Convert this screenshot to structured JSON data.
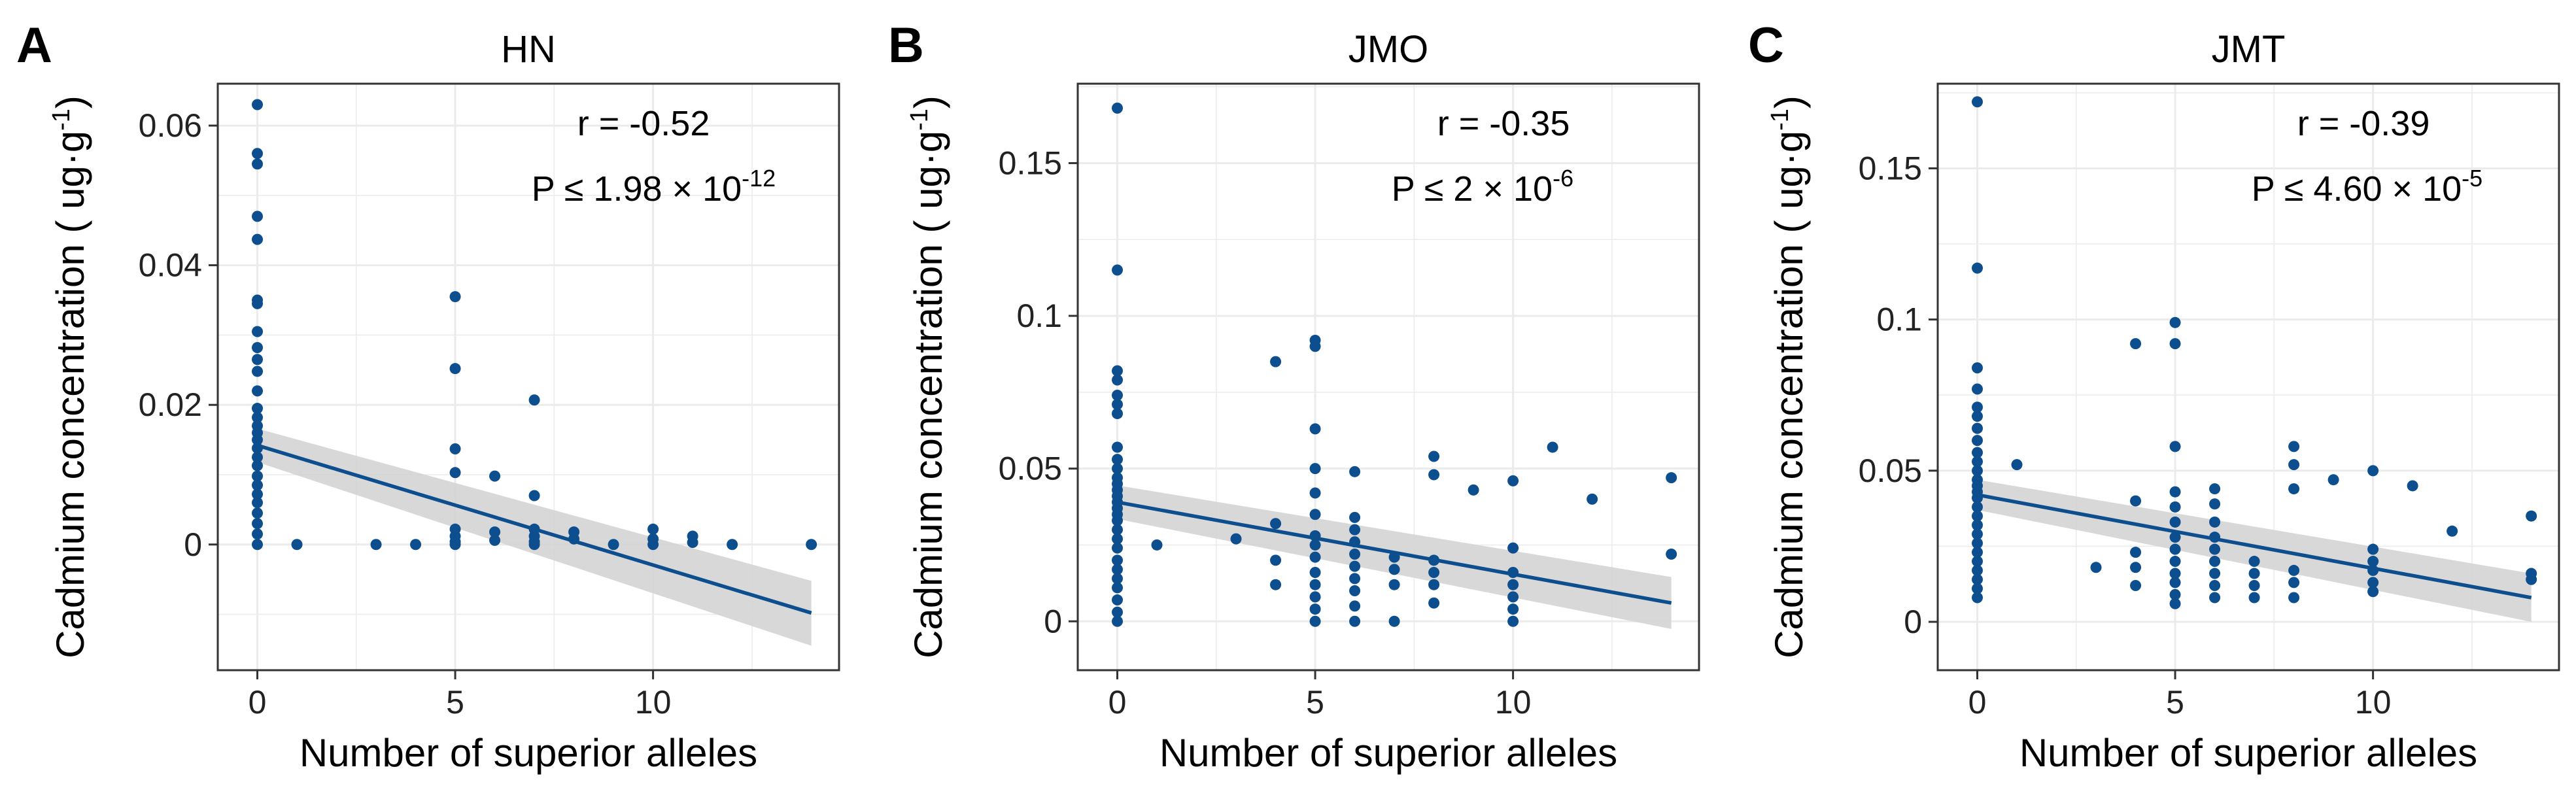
{
  "figure": {
    "xlabel": "Number of superior alleles",
    "ylabel_main": "Cadmium concentration ( ug·g",
    "ylabel_sup": "-1",
    "ylabel_close": ")"
  },
  "colors": {
    "points": "#0D4E8E",
    "fit_line": "#0D4E8E",
    "ci_band": "#D4D4D4",
    "grid": "#EBEBEB",
    "frame": "#333333",
    "text": "#000000"
  },
  "chart_data": [
    {
      "type": "scatter",
      "panel_label": "A",
      "title": "HN",
      "xlabel": "Number of superior alleles",
      "ylabel": "Cadmium concentration ( ug·g-1)",
      "xlim": [
        -1,
        14.7
      ],
      "ylim": [
        -0.018,
        0.066
      ],
      "xticks": [
        0,
        5,
        10
      ],
      "xtick_labels": [
        "0",
        "5",
        "10"
      ],
      "yticks": [
        0,
        0.02,
        0.04,
        0.06
      ],
      "ytick_labels": [
        "0",
        "0.02",
        "0.04",
        "0.06"
      ],
      "annotation": {
        "r": "r = -0.52",
        "p_base": "P ≤ 1.98 × 10",
        "p_exp": "-12"
      },
      "fit": {
        "x": [
          0,
          14
        ],
        "y": [
          0.0142,
          -0.0098
        ],
        "ci_low": [
          0.0118,
          -0.0145
        ],
        "ci_high": [
          0.0166,
          -0.0052
        ]
      },
      "points": [
        [
          0,
          0.063
        ],
        [
          0,
          0.056
        ],
        [
          0,
          0.0545
        ],
        [
          0,
          0.047
        ],
        [
          0,
          0.0437
        ],
        [
          0,
          0.035
        ],
        [
          0,
          0.0345
        ],
        [
          0,
          0.0305
        ],
        [
          0,
          0.0282
        ],
        [
          0,
          0.0265
        ],
        [
          0,
          0.0248
        ],
        [
          0,
          0.022
        ],
        [
          0,
          0.0195
        ],
        [
          0,
          0.0182
        ],
        [
          0,
          0.017
        ],
        [
          0,
          0.016
        ],
        [
          0,
          0.015
        ],
        [
          0,
          0.0138
        ],
        [
          0,
          0.0125
        ],
        [
          0,
          0.0113
        ],
        [
          0,
          0.0098
        ],
        [
          0,
          0.0085
        ],
        [
          0,
          0.0072
        ],
        [
          0,
          0.006
        ],
        [
          0,
          0.0045
        ],
        [
          0,
          0.003
        ],
        [
          0,
          0.0015
        ],
        [
          0,
          0.0
        ],
        [
          1,
          0.0
        ],
        [
          3,
          0.0
        ],
        [
          4,
          0.0
        ],
        [
          5,
          0.0355
        ],
        [
          5,
          0.0252
        ],
        [
          5,
          0.0137
        ],
        [
          5,
          0.0103
        ],
        [
          5,
          0.0022
        ],
        [
          5,
          0.0012
        ],
        [
          5,
          0.0004
        ],
        [
          5,
          0.0
        ],
        [
          6,
          0.0098
        ],
        [
          6,
          0.0018
        ],
        [
          6,
          0.0006
        ],
        [
          7,
          0.0207
        ],
        [
          7,
          0.007
        ],
        [
          7,
          0.0022
        ],
        [
          7,
          0.0012
        ],
        [
          7,
          0.0004
        ],
        [
          7,
          0.0
        ],
        [
          8,
          0.0018
        ],
        [
          8,
          0.0008
        ],
        [
          9,
          0.0
        ],
        [
          10,
          0.0022
        ],
        [
          10,
          0.0008
        ],
        [
          10,
          0.0
        ],
        [
          11,
          0.0012
        ],
        [
          11,
          0.0003
        ],
        [
          12,
          0.0
        ],
        [
          14,
          0.0
        ]
      ]
    },
    {
      "type": "scatter",
      "panel_label": "B",
      "title": "JMO",
      "xlabel": "Number of superior alleles",
      "ylabel": "Cadmium concentration ( ug·g-1)",
      "xlim": [
        -1,
        14.7
      ],
      "ylim": [
        -0.016,
        0.176
      ],
      "xticks": [
        0,
        5,
        10
      ],
      "xtick_labels": [
        "0",
        "5",
        "10"
      ],
      "yticks": [
        0,
        0.05,
        0.1,
        0.15
      ],
      "ytick_labels": [
        "0",
        "0.05",
        "0.1",
        "0.15"
      ],
      "annotation": {
        "r": "r = -0.35",
        "p_base": "P ≤ 2 × 10",
        "p_exp": "-6"
      },
      "fit": {
        "x": [
          0,
          14
        ],
        "y": [
          0.039,
          0.006
        ],
        "ci_low": [
          0.0335,
          -0.0025
        ],
        "ci_high": [
          0.0445,
          0.0145
        ]
      },
      "points": [
        [
          0,
          0.168
        ],
        [
          0,
          0.115
        ],
        [
          0,
          0.082
        ],
        [
          0,
          0.079
        ],
        [
          0,
          0.074
        ],
        [
          0,
          0.071
        ],
        [
          0,
          0.068
        ],
        [
          0,
          0.057
        ],
        [
          0,
          0.053
        ],
        [
          0,
          0.05
        ],
        [
          0,
          0.047
        ],
        [
          0,
          0.045
        ],
        [
          0,
          0.043
        ],
        [
          0,
          0.041
        ],
        [
          0,
          0.039
        ],
        [
          0,
          0.037
        ],
        [
          0,
          0.035
        ],
        [
          0,
          0.033
        ],
        [
          0,
          0.03
        ],
        [
          0,
          0.027
        ],
        [
          0,
          0.024
        ],
        [
          0,
          0.02
        ],
        [
          0,
          0.017
        ],
        [
          0,
          0.014
        ],
        [
          0,
          0.011
        ],
        [
          0,
          0.007
        ],
        [
          0,
          0.003
        ],
        [
          0,
          0.0
        ],
        [
          1,
          0.025
        ],
        [
          3,
          0.027
        ],
        [
          4,
          0.085
        ],
        [
          4,
          0.032
        ],
        [
          4,
          0.02
        ],
        [
          4,
          0.012
        ],
        [
          5,
          0.092
        ],
        [
          5,
          0.09
        ],
        [
          5,
          0.063
        ],
        [
          5,
          0.05
        ],
        [
          5,
          0.042
        ],
        [
          5,
          0.035
        ],
        [
          5,
          0.028
        ],
        [
          5,
          0.025
        ],
        [
          5,
          0.021
        ],
        [
          5,
          0.016
        ],
        [
          5,
          0.012
        ],
        [
          5,
          0.008
        ],
        [
          5,
          0.004
        ],
        [
          5,
          0.0
        ],
        [
          6,
          0.049
        ],
        [
          6,
          0.034
        ],
        [
          6,
          0.03
        ],
        [
          6,
          0.026
        ],
        [
          6,
          0.022
        ],
        [
          6,
          0.018
        ],
        [
          6,
          0.014
        ],
        [
          6,
          0.01
        ],
        [
          6,
          0.005
        ],
        [
          6,
          0.0
        ],
        [
          7,
          0.021
        ],
        [
          7,
          0.017
        ],
        [
          7,
          0.012
        ],
        [
          7,
          0.0
        ],
        [
          8,
          0.054
        ],
        [
          8,
          0.048
        ],
        [
          8,
          0.02
        ],
        [
          8,
          0.016
        ],
        [
          8,
          0.012
        ],
        [
          8,
          0.006
        ],
        [
          9,
          0.043
        ],
        [
          10,
          0.046
        ],
        [
          10,
          0.024
        ],
        [
          10,
          0.016
        ],
        [
          10,
          0.012
        ],
        [
          10,
          0.008
        ],
        [
          10,
          0.004
        ],
        [
          10,
          0.0
        ],
        [
          11,
          0.057
        ],
        [
          12,
          0.04
        ],
        [
          14,
          0.047
        ],
        [
          14,
          0.022
        ]
      ]
    },
    {
      "type": "scatter",
      "panel_label": "C",
      "title": "JMT",
      "xlabel": "Number of superior alleles",
      "ylabel": "Cadmium concentration ( ug·g-1)",
      "xlim": [
        -1,
        14.7
      ],
      "ylim": [
        -0.016,
        0.178
      ],
      "xticks": [
        0,
        5,
        10
      ],
      "xtick_labels": [
        "0",
        "5",
        "10"
      ],
      "yticks": [
        0,
        0.05,
        0.1,
        0.15
      ],
      "ytick_labels": [
        "0",
        "0.05",
        "0.1",
        "0.15"
      ],
      "annotation": {
        "r": "r = -0.39",
        "p_base": "P ≤ 4.60 × 10",
        "p_exp": "-5"
      },
      "fit": {
        "x": [
          0,
          14
        ],
        "y": [
          0.042,
          0.008
        ],
        "ci_low": [
          0.037,
          0.0
        ],
        "ci_high": [
          0.047,
          0.016
        ]
      },
      "points": [
        [
          0,
          0.172
        ],
        [
          0,
          0.117
        ],
        [
          0,
          0.084
        ],
        [
          0,
          0.077
        ],
        [
          0,
          0.071
        ],
        [
          0,
          0.068
        ],
        [
          0,
          0.064
        ],
        [
          0,
          0.06
        ],
        [
          0,
          0.056
        ],
        [
          0,
          0.053
        ],
        [
          0,
          0.05
        ],
        [
          0,
          0.047
        ],
        [
          0,
          0.045
        ],
        [
          0,
          0.043
        ],
        [
          0,
          0.041
        ],
        [
          0,
          0.038
        ],
        [
          0,
          0.035
        ],
        [
          0,
          0.032
        ],
        [
          0,
          0.029
        ],
        [
          0,
          0.026
        ],
        [
          0,
          0.023
        ],
        [
          0,
          0.02
        ],
        [
          0,
          0.017
        ],
        [
          0,
          0.014
        ],
        [
          0,
          0.011
        ],
        [
          0,
          0.008
        ],
        [
          1,
          0.052
        ],
        [
          3,
          0.018
        ],
        [
          4,
          0.092
        ],
        [
          4,
          0.04
        ],
        [
          4,
          0.023
        ],
        [
          4,
          0.018
        ],
        [
          4,
          0.012
        ],
        [
          5,
          0.099
        ],
        [
          5,
          0.092
        ],
        [
          5,
          0.058
        ],
        [
          5,
          0.043
        ],
        [
          5,
          0.038
        ],
        [
          5,
          0.033
        ],
        [
          5,
          0.028
        ],
        [
          5,
          0.024
        ],
        [
          5,
          0.02
        ],
        [
          5,
          0.016
        ],
        [
          5,
          0.013
        ],
        [
          5,
          0.009
        ],
        [
          5,
          0.006
        ],
        [
          6,
          0.044
        ],
        [
          6,
          0.039
        ],
        [
          6,
          0.033
        ],
        [
          6,
          0.028
        ],
        [
          6,
          0.024
        ],
        [
          6,
          0.02
        ],
        [
          6,
          0.016
        ],
        [
          6,
          0.012
        ],
        [
          6,
          0.008
        ],
        [
          7,
          0.02
        ],
        [
          7,
          0.016
        ],
        [
          7,
          0.012
        ],
        [
          7,
          0.008
        ],
        [
          8,
          0.058
        ],
        [
          8,
          0.052
        ],
        [
          8,
          0.044
        ],
        [
          8,
          0.017
        ],
        [
          8,
          0.013
        ],
        [
          8,
          0.008
        ],
        [
          9,
          0.047
        ],
        [
          10,
          0.05
        ],
        [
          10,
          0.024
        ],
        [
          10,
          0.02
        ],
        [
          10,
          0.017
        ],
        [
          10,
          0.013
        ],
        [
          10,
          0.01
        ],
        [
          11,
          0.045
        ],
        [
          12,
          0.03
        ],
        [
          14,
          0.035
        ],
        [
          14,
          0.016
        ],
        [
          14,
          0.014
        ]
      ]
    }
  ]
}
